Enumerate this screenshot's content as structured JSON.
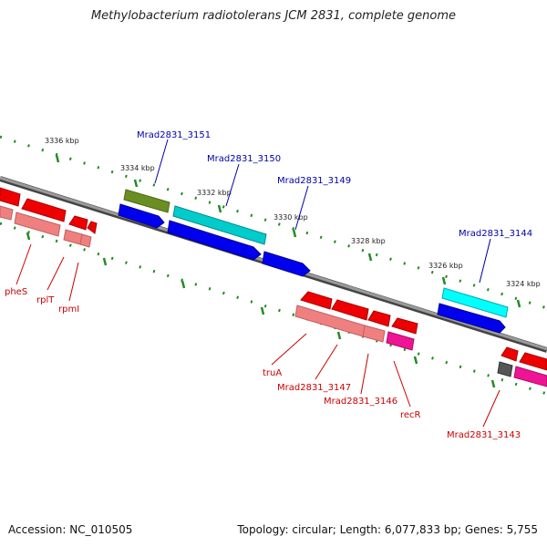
{
  "title": "Methylobacterium radiotolerans JCM 2831, complete genome",
  "footer": {
    "accession": "Accession: NC_010505",
    "summary": "Topology: circular; Length: 6,077,833 bp; Genes: 5,755"
  },
  "ticks": [
    "3336 kbp",
    "3334 kbp",
    "3332 kbp",
    "3330 kbp",
    "3328 kbp",
    "3326 kbp",
    "3324 kbp"
  ],
  "genes_top": [
    {
      "name": "Mrad2831_3151",
      "color": "#0000aa"
    },
    {
      "name": "Mrad2831_3150",
      "color": "#0000aa"
    },
    {
      "name": "Mrad2831_3149",
      "color": "#0000aa"
    },
    {
      "name": "Mrad2831_3144",
      "color": "#0000aa"
    }
  ],
  "genes_bottom": [
    {
      "name": "pheS",
      "color": "#cc0000"
    },
    {
      "name": "rplT",
      "color": "#cc0000"
    },
    {
      "name": "rpmI",
      "color": "#cc0000"
    },
    {
      "name": "truA",
      "color": "#cc0000"
    },
    {
      "name": "Mrad2831_3147",
      "color": "#cc0000"
    },
    {
      "name": "Mrad2831_3146",
      "color": "#cc0000"
    },
    {
      "name": "recR",
      "color": "#cc0000"
    },
    {
      "name": "Mrad2831_3143",
      "color": "#cc0000"
    }
  ],
  "colors": {
    "backbone": "#7a7a7a",
    "tick_dots": "#228b22",
    "forward_cds": "#0000ee",
    "reverse_cds": "#ee0000",
    "reverse_rna": "#f08080",
    "olive_feature": "#6b8e23",
    "cyan_feature": "#00cccc",
    "magenta_feature": "#ee1493",
    "gray_feature": "#555555"
  }
}
